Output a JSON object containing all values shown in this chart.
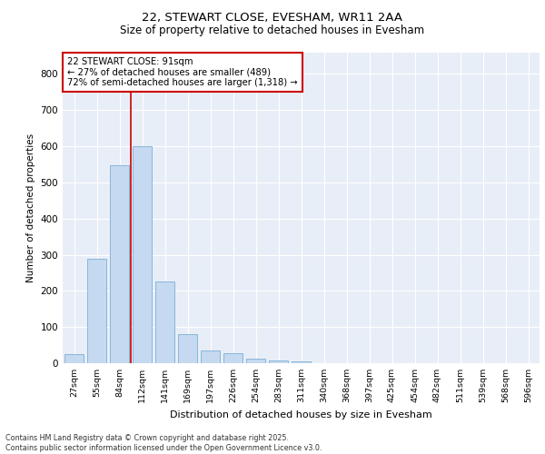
{
  "title_line1": "22, STEWART CLOSE, EVESHAM, WR11 2AA",
  "title_line2": "Size of property relative to detached houses in Evesham",
  "xlabel": "Distribution of detached houses by size in Evesham",
  "ylabel": "Number of detached properties",
  "bar_color": "#c5d9f0",
  "bar_edge_color": "#7bafd4",
  "categories": [
    "27sqm",
    "55sqm",
    "84sqm",
    "112sqm",
    "141sqm",
    "169sqm",
    "197sqm",
    "226sqm",
    "254sqm",
    "283sqm",
    "311sqm",
    "340sqm",
    "368sqm",
    "397sqm",
    "425sqm",
    "454sqm",
    "482sqm",
    "511sqm",
    "539sqm",
    "568sqm",
    "596sqm"
  ],
  "values": [
    25,
    290,
    548,
    600,
    225,
    80,
    35,
    27,
    12,
    8,
    5,
    0,
    0,
    0,
    0,
    0,
    0,
    0,
    0,
    0,
    0
  ],
  "ylim": [
    0,
    860
  ],
  "yticks": [
    0,
    100,
    200,
    300,
    400,
    500,
    600,
    700,
    800
  ],
  "vline_x_index": 2,
  "vline_color": "#cc0000",
  "annotation_text": "22 STEWART CLOSE: 91sqm\n← 27% of detached houses are smaller (489)\n72% of semi-detached houses are larger (1,318) →",
  "annotation_box_color": "#ffffff",
  "annotation_box_edge": "#cc0000",
  "footnote": "Contains HM Land Registry data © Crown copyright and database right 2025.\nContains public sector information licensed under the Open Government Licence v3.0.",
  "background_color": "#e8eef7",
  "grid_color": "#ffffff",
  "fig_bg_color": "#ffffff"
}
